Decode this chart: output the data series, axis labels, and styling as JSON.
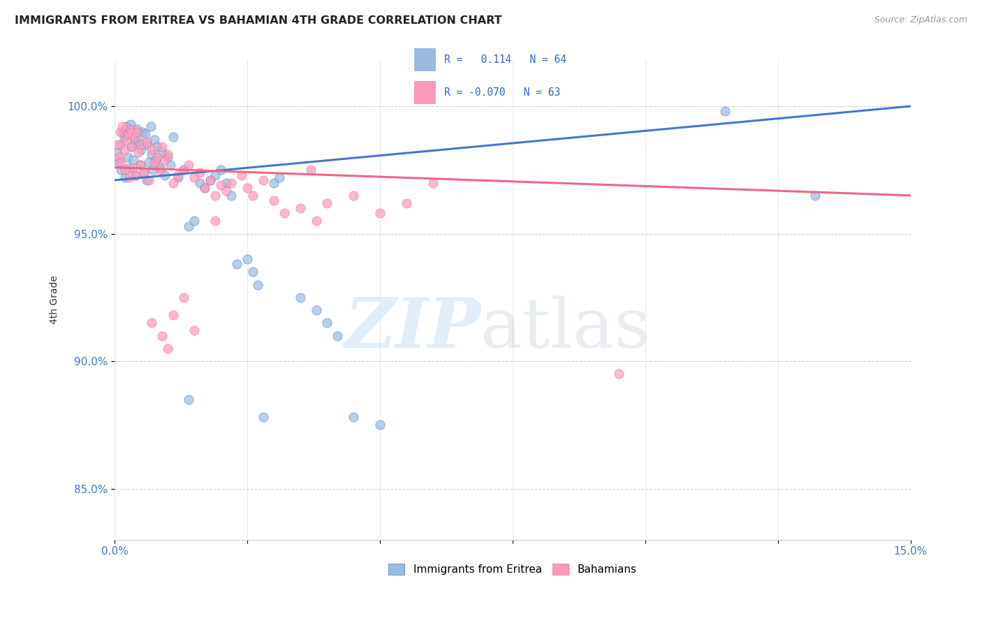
{
  "title": "IMMIGRANTS FROM ERITREA VS BAHAMIAN 4TH GRADE CORRELATION CHART",
  "source": "Source: ZipAtlas.com",
  "ylabel": "4th Grade",
  "x_range": [
    0.0,
    15.0
  ],
  "y_range": [
    83.0,
    101.8
  ],
  "color_blue": "#99BBDD",
  "color_pink": "#FF99BB",
  "color_blue_line": "#4477CC",
  "color_pink_line": "#EE6688",
  "color_axis_text": "#4477CC",
  "blue_line_y0": 97.1,
  "blue_line_y15": 100.0,
  "pink_line_y0": 97.6,
  "pink_line_y15": 96.5,
  "blue_scatter_x": [
    0.05,
    0.08,
    0.1,
    0.12,
    0.15,
    0.18,
    0.2,
    0.22,
    0.25,
    0.28,
    0.3,
    0.32,
    0.35,
    0.38,
    0.4,
    0.42,
    0.45,
    0.48,
    0.5,
    0.52,
    0.55,
    0.58,
    0.6,
    0.62,
    0.65,
    0.68,
    0.7,
    0.72,
    0.75,
    0.78,
    0.8,
    0.85,
    0.9,
    0.95,
    1.0,
    1.05,
    1.1,
    1.2,
    1.3,
    1.4,
    1.5,
    1.6,
    1.7,
    1.8,
    1.9,
    2.0,
    2.1,
    2.2,
    2.3,
    2.5,
    2.6,
    2.7,
    3.0,
    3.1,
    3.5,
    3.8,
    4.0,
    4.2,
    4.5,
    5.0,
    11.5,
    13.2,
    1.4,
    2.8
  ],
  "blue_scatter_y": [
    98.2,
    97.8,
    98.5,
    97.5,
    99.0,
    98.8,
    97.2,
    99.2,
    98.0,
    97.6,
    99.3,
    98.4,
    97.9,
    98.7,
    97.3,
    99.1,
    98.6,
    97.7,
    98.3,
    99.0,
    97.4,
    98.9,
    97.1,
    98.5,
    97.8,
    99.2,
    98.1,
    97.5,
    98.7,
    97.9,
    98.4,
    97.6,
    98.2,
    97.3,
    98.0,
    97.7,
    98.8,
    97.2,
    97.5,
    95.3,
    95.5,
    97.0,
    96.8,
    97.1,
    97.3,
    97.5,
    97.0,
    96.5,
    93.8,
    94.0,
    93.5,
    93.0,
    97.0,
    97.2,
    92.5,
    92.0,
    91.5,
    91.0,
    87.8,
    87.5,
    99.8,
    96.5,
    88.5,
    87.8
  ],
  "pink_scatter_x": [
    0.05,
    0.08,
    0.1,
    0.12,
    0.15,
    0.18,
    0.2,
    0.22,
    0.25,
    0.28,
    0.3,
    0.32,
    0.35,
    0.38,
    0.4,
    0.42,
    0.45,
    0.48,
    0.5,
    0.55,
    0.6,
    0.65,
    0.7,
    0.75,
    0.8,
    0.85,
    0.9,
    0.95,
    1.0,
    1.1,
    1.2,
    1.3,
    1.4,
    1.5,
    1.6,
    1.7,
    1.8,
    1.9,
    2.0,
    2.1,
    2.2,
    2.4,
    2.5,
    2.6,
    2.8,
    3.0,
    3.2,
    3.5,
    3.8,
    4.0,
    4.5,
    5.0,
    5.5,
    6.0,
    1.0,
    0.7,
    0.9,
    1.1,
    1.3,
    1.5,
    1.9,
    9.5,
    3.7
  ],
  "pink_scatter_y": [
    98.5,
    98.0,
    99.0,
    97.8,
    99.2,
    98.3,
    97.5,
    98.7,
    98.9,
    97.2,
    99.1,
    98.4,
    97.6,
    98.8,
    97.3,
    99.0,
    98.2,
    97.7,
    98.5,
    97.4,
    98.6,
    97.1,
    98.3,
    97.8,
    98.0,
    97.5,
    98.4,
    97.9,
    98.1,
    97.0,
    97.3,
    97.5,
    97.7,
    97.2,
    97.4,
    96.8,
    97.1,
    96.5,
    96.9,
    96.7,
    97.0,
    97.3,
    96.8,
    96.5,
    97.1,
    96.3,
    95.8,
    96.0,
    95.5,
    96.2,
    96.5,
    95.8,
    96.2,
    97.0,
    90.5,
    91.5,
    91.0,
    91.8,
    92.5,
    91.2,
    95.5,
    89.5,
    97.5
  ]
}
